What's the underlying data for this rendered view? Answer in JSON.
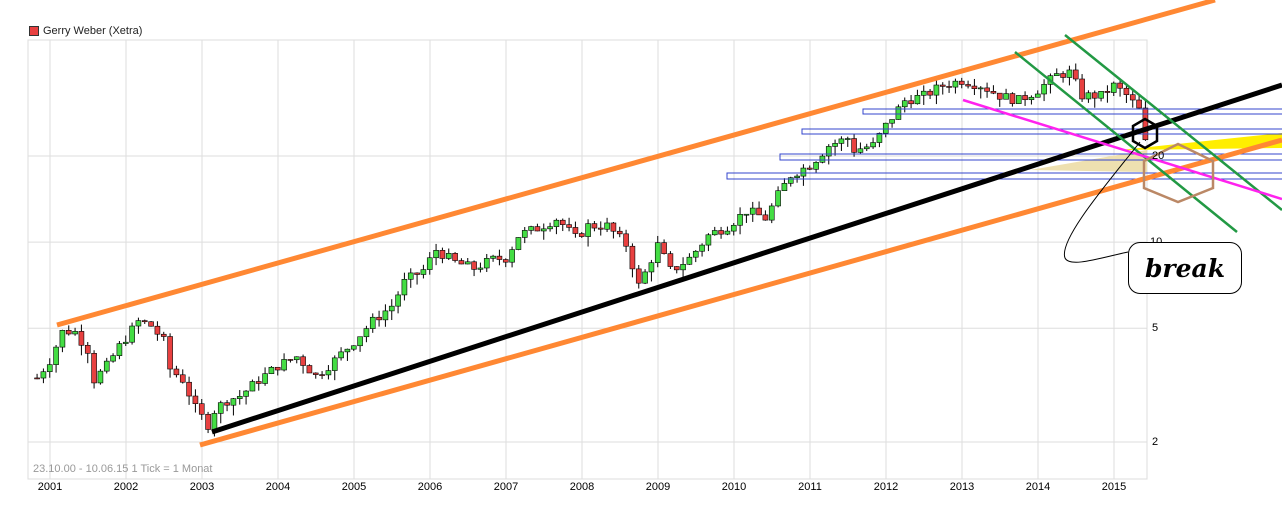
{
  "legend": {
    "label": "Gerry Weber (Xetra)",
    "color": "#e84040"
  },
  "range_text": "23.10.00 - 10.06.15   1 Tick = 1 Monat",
  "annotation": {
    "text": "break"
  },
  "chart_data": {
    "type": "candlestick",
    "title": "Gerry Weber (Xetra)",
    "yscale": "log",
    "ylim": [
      1.8,
      51
    ],
    "yticks": [
      "2",
      "5",
      "10",
      "20"
    ],
    "xticks": [
      "2001",
      "2002",
      "2003",
      "2004",
      "2005",
      "2006",
      "2007",
      "2008",
      "2009",
      "2010",
      "2011",
      "2012",
      "2013",
      "2014",
      "2015"
    ],
    "period": "monthly",
    "key_points": {
      "date": [
        2000.83,
        2001.0,
        2001.17,
        2001.33,
        2001.5,
        2001.58,
        2001.75,
        2001.92,
        2002.17,
        2002.33,
        2002.5,
        2002.58,
        2002.75,
        2002.92,
        2003.08,
        2003.17,
        2003.33,
        2003.5,
        2003.75,
        2004.0,
        2004.25,
        2004.5,
        2004.75,
        2005.0,
        2005.25,
        2005.5,
        2005.67,
        2005.92,
        2006.08,
        2006.33,
        2006.58,
        2006.83,
        2007.0,
        2007.17,
        2007.42,
        2007.67,
        2007.92,
        2008.08,
        2008.33,
        2008.58,
        2008.75,
        2009.0,
        2009.17,
        2009.42,
        2009.67,
        2009.92,
        2010.17,
        2010.42,
        2010.58,
        2010.75,
        2011.0,
        2011.25,
        2011.5,
        2011.58,
        2011.83,
        2012.0,
        2012.25,
        2012.5,
        2012.75,
        2013.0,
        2013.25,
        2013.5,
        2013.75,
        2014.0,
        2014.25,
        2014.42,
        2014.58,
        2014.83,
        2015.0,
        2015.17,
        2015.33,
        2015.42
      ],
      "close": [
        3.35,
        3.87,
        4.9,
        4.85,
        4.2,
        3.3,
        3.7,
        4.35,
        5.3,
        5.1,
        4.5,
        3.6,
        3.3,
        2.6,
        2.3,
        2.6,
        2.8,
        2.9,
        3.3,
        3.7,
        3.98,
        3.4,
        3.87,
        4.5,
        5.3,
        6.0,
        7.3,
        8.0,
        9.4,
        8.5,
        8.1,
        8.7,
        8.8,
        10.6,
        11.2,
        12.1,
        10.3,
        11.4,
        11.4,
        9.8,
        7.0,
        9.8,
        7.9,
        8.8,
        10.6,
        11.4,
        12.9,
        12.1,
        14.6,
        17.2,
        18.6,
        21.8,
        23.1,
        21.0,
        21.8,
        25.6,
        31.3,
        32.5,
        35.3,
        36.8,
        35.3,
        32.5,
        31.3,
        34.1,
        38.4,
        39.2,
        32.5,
        32.5,
        35.3,
        32.5,
        29.0,
        22.8
      ]
    }
  }
}
